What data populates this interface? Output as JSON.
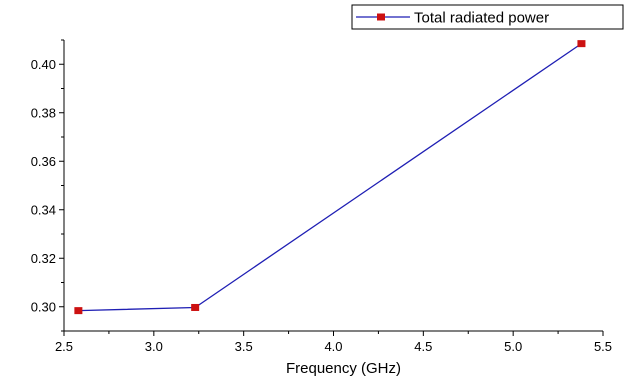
{
  "chart_data": {
    "type": "line",
    "title": "",
    "xlabel": "Frequency (GHz)",
    "ylabel": "",
    "xlim": [
      2.5,
      5.5
    ],
    "ylim": [
      0.29,
      0.41
    ],
    "xticks": [
      "2.5",
      "3.0",
      "3.5",
      "4.0",
      "4.5",
      "5.0",
      "5.5"
    ],
    "yticks": [
      "0.30",
      "0.32",
      "0.34",
      "0.36",
      "0.38",
      "0.40"
    ],
    "grid": false,
    "legend_position": "top-right",
    "series": [
      {
        "name": "Total radiated power",
        "line_color": "#1f1fb4",
        "marker_color": "#cc1111",
        "marker": "square",
        "x": [
          2.58,
          3.23,
          5.38
        ],
        "y": [
          0.2984,
          0.2997,
          0.4085
        ]
      }
    ]
  }
}
